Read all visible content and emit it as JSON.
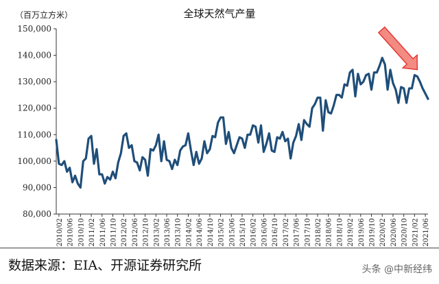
{
  "chart_data": {
    "type": "line",
    "title": "全球天然气产量",
    "unit_label": "（百万立方米）",
    "ylim": [
      80000,
      150000
    ],
    "yticks": [
      "80,000",
      "90,000",
      "100,000",
      "110,000",
      "120,000",
      "130,000",
      "140,000",
      "150,000"
    ],
    "ytick_values": [
      80000,
      90000,
      100000,
      110000,
      120000,
      130000,
      140000,
      150000
    ],
    "xtick_labels": [
      "2010/02",
      "2010/06",
      "2010/10",
      "2011/02",
      "2011/06",
      "2011/10",
      "2012/02",
      "2012/06",
      "2012/10",
      "2013/02",
      "2013/06",
      "2013/10",
      "2014/02",
      "2014/06",
      "2014/10",
      "2015/02",
      "2015/06",
      "2015/10",
      "2016/02",
      "2016/06",
      "2016/10",
      "2017/02",
      "2017/06",
      "2017/10",
      "2018/02",
      "2018/06",
      "2018/10",
      "2019/02",
      "2019/06",
      "2019/10",
      "2020/02",
      "2020/06",
      "2020/10",
      "2021/02",
      "2021/06"
    ],
    "series": [
      {
        "color": "#1f4e79",
        "x": [
          "2010/01",
          "2010/02",
          "2010/03",
          "2010/04",
          "2010/05",
          "2010/06",
          "2010/07",
          "2010/08",
          "2010/09",
          "2010/10",
          "2010/11",
          "2010/12",
          "2011/01",
          "2011/02",
          "2011/03",
          "2011/04",
          "2011/05",
          "2011/06",
          "2011/07",
          "2011/08",
          "2011/09",
          "2011/10",
          "2011/11",
          "2011/12",
          "2012/01",
          "2012/02",
          "2012/03",
          "2012/04",
          "2012/05",
          "2012/06",
          "2012/07",
          "2012/08",
          "2012/09",
          "2012/10",
          "2012/11",
          "2012/12",
          "2013/01",
          "2013/02",
          "2013/03",
          "2013/04",
          "2013/05",
          "2013/06",
          "2013/07",
          "2013/08",
          "2013/09",
          "2013/10",
          "2013/11",
          "2013/12",
          "2014/01",
          "2014/02",
          "2014/03",
          "2014/04",
          "2014/05",
          "2014/06",
          "2014/07",
          "2014/08",
          "2014/09",
          "2014/10",
          "2014/11",
          "2014/12",
          "2015/01",
          "2015/02",
          "2015/03",
          "2015/04",
          "2015/05",
          "2015/06",
          "2015/07",
          "2015/08",
          "2015/09",
          "2015/10",
          "2015/11",
          "2015/12",
          "2016/01",
          "2016/02",
          "2016/03",
          "2016/04",
          "2016/05",
          "2016/06",
          "2016/07",
          "2016/08",
          "2016/09",
          "2016/10",
          "2016/11",
          "2016/12",
          "2017/01",
          "2017/02",
          "2017/03",
          "2017/04",
          "2017/05",
          "2017/06",
          "2017/07",
          "2017/08",
          "2017/09",
          "2017/10",
          "2017/11",
          "2017/12",
          "2018/01",
          "2018/02",
          "2018/03",
          "2018/04",
          "2018/05",
          "2018/06",
          "2018/07",
          "2018/08",
          "2018/09",
          "2018/10",
          "2018/11",
          "2018/12",
          "2019/01",
          "2019/02",
          "2019/03",
          "2019/04",
          "2019/05",
          "2019/06",
          "2019/07",
          "2019/08",
          "2019/09",
          "2019/10",
          "2019/11",
          "2019/12",
          "2020/01",
          "2020/02",
          "2020/03",
          "2020/04",
          "2020/05",
          "2020/06",
          "2020/07",
          "2020/08",
          "2020/09",
          "2020/10",
          "2020/11",
          "2020/12",
          "2021/01",
          "2021/02",
          "2021/03",
          "2021/04",
          "2021/05",
          "2021/06",
          "2021/07"
        ],
        "values": [
          108000,
          99000,
          98500,
          100000,
          96000,
          97500,
          92000,
          94500,
          91500,
          90000,
          100000,
          101000,
          108500,
          109500,
          99000,
          104500,
          95000,
          95000,
          91500,
          94000,
          93000,
          96000,
          93500,
          99500,
          103000,
          109500,
          110500,
          105000,
          106000,
          100000,
          99500,
          96500,
          101500,
          100500,
          94500,
          104500,
          104000,
          106000,
          110000,
          100000,
          107500,
          100500,
          100000,
          97000,
          100500,
          98500,
          104000,
          105500,
          106000,
          110500,
          104000,
          98500,
          103500,
          99000,
          101000,
          107500,
          103000,
          104500,
          109500,
          109000,
          114500,
          116500,
          116500,
          106500,
          111000,
          105000,
          103000,
          106000,
          109000,
          108500,
          105000,
          110000,
          110000,
          113500,
          113000,
          107000,
          113500,
          103500,
          106500,
          110500,
          104000,
          103500,
          109000,
          108500,
          111000,
          107500,
          108500,
          101000,
          107000,
          109500,
          114000,
          108000,
          115500,
          114000,
          113000,
          120000,
          121500,
          124000,
          124000,
          111500,
          123000,
          118500,
          118000,
          121000,
          125000,
          125000,
          124000,
          129000,
          128500,
          133500,
          134500,
          124500,
          133000,
          129000,
          130000,
          132500,
          133000,
          127000,
          133500,
          133500,
          136000,
          139000,
          136500,
          127000,
          134500,
          129500,
          127000,
          122000,
          128000,
          127500,
          122000,
          127500,
          127500,
          132500,
          132000,
          130000,
          127500,
          125500,
          123500
        ]
      }
    ],
    "annotation": {
      "type": "arrow",
      "color": "#e53935",
      "points_to": "2021/02"
    }
  },
  "source_text": "数据来源：EIA、开源证券研究所",
  "watermark": "头条 @中新经纬"
}
